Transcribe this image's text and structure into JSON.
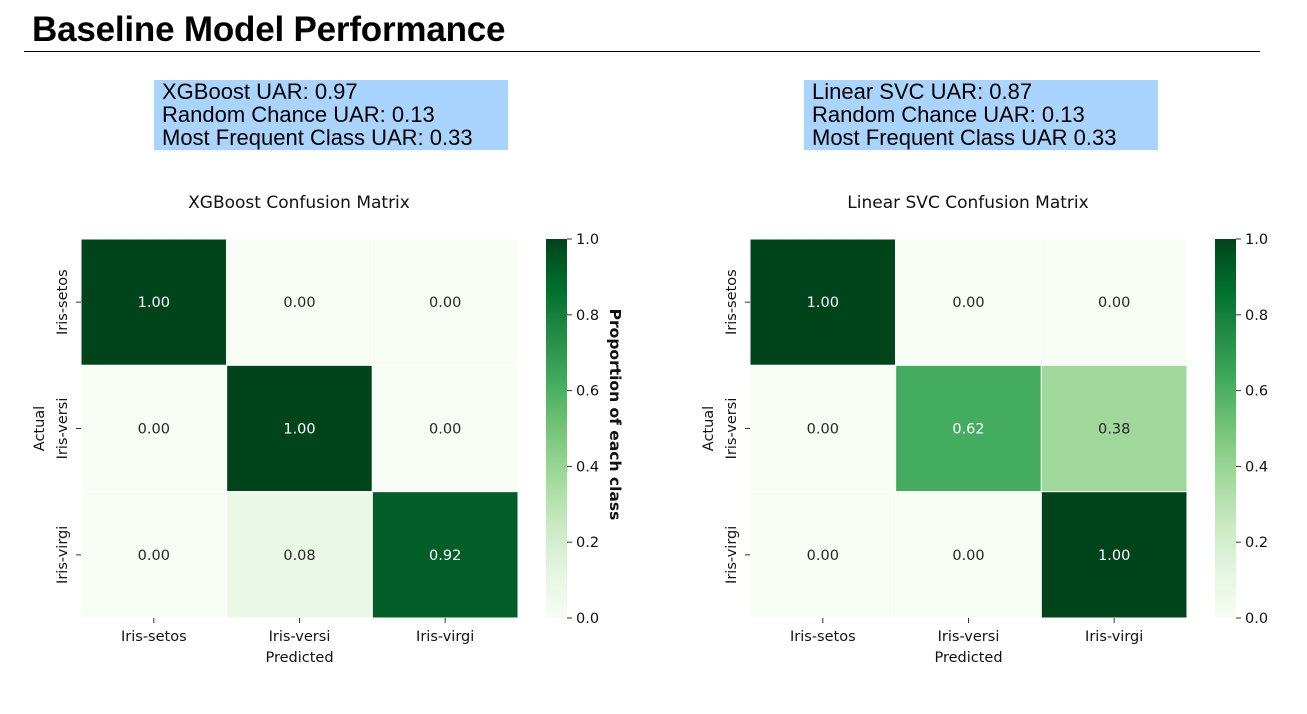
{
  "page": {
    "title": "Baseline Model Performance"
  },
  "info_boxes": [
    {
      "lines": [
        "XGBoost UAR: 0.97",
        "Random Chance UAR: 0.13",
        "Most Frequent Class UAR: 0.33"
      ]
    },
    {
      "lines": [
        "Linear SVC UAR: 0.87",
        "Random Chance UAR: 0.13",
        "Most Frequent Class UAR 0.33"
      ]
    }
  ],
  "colors": {
    "box_background": "#a9d4ff",
    "colormap": [
      "#f7fcf5",
      "#e5f5e0",
      "#c7e9c0",
      "#a1d99b",
      "#74c476",
      "#41ab5d",
      "#238b45",
      "#006d2c",
      "#00441b"
    ]
  },
  "chart_data": [
    {
      "type": "heatmap",
      "title": "XGBoost Confusion Matrix",
      "xlabel": "Predicted",
      "ylabel": "Actual",
      "x_categories": [
        "Iris-setos",
        "Iris-versi",
        "Iris-virgi"
      ],
      "y_categories": [
        "Iris-setos",
        "Iris-versi",
        "Iris-virgi"
      ],
      "values": [
        [
          1.0,
          0.0,
          0.0
        ],
        [
          0.0,
          1.0,
          0.0
        ],
        [
          0.0,
          0.08,
          0.92
        ]
      ],
      "value_labels": [
        [
          "1.00",
          "0.00",
          "0.00"
        ],
        [
          "0.00",
          "1.00",
          "0.00"
        ],
        [
          "0.00",
          "0.08",
          "0.92"
        ]
      ],
      "colorbar": {
        "label": "Proportion of each class",
        "range": [
          0.0,
          1.0
        ],
        "ticks": [
          "0.0",
          "0.2",
          "0.4",
          "0.6",
          "0.8",
          "1.0"
        ]
      },
      "colormap": "Greens",
      "grid": false
    },
    {
      "type": "heatmap",
      "title": "Linear SVC Confusion Matrix",
      "xlabel": "Predicted",
      "ylabel": "Actual",
      "x_categories": [
        "Iris-setos",
        "Iris-versi",
        "Iris-virgi"
      ],
      "y_categories": [
        "Iris-setos",
        "Iris-versi",
        "Iris-virgi"
      ],
      "values": [
        [
          1.0,
          0.0,
          0.0
        ],
        [
          0.0,
          0.62,
          0.38
        ],
        [
          0.0,
          0.0,
          1.0
        ]
      ],
      "value_labels": [
        [
          "1.00",
          "0.00",
          "0.00"
        ],
        [
          "0.00",
          "0.62",
          "0.38"
        ],
        [
          "0.00",
          "0.00",
          "1.00"
        ]
      ],
      "colorbar": {
        "label": "",
        "range": [
          0.0,
          1.0
        ],
        "ticks": [
          "0.0",
          "0.2",
          "0.4",
          "0.6",
          "0.8",
          "1.0"
        ]
      },
      "colormap": "Greens",
      "grid": false
    }
  ]
}
